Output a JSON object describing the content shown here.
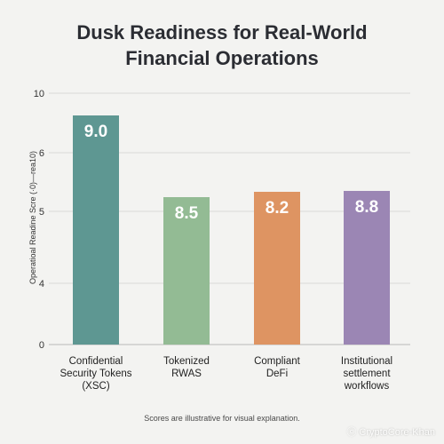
{
  "chart_data": {
    "type": "bar",
    "title_lines": [
      "Dusk Readiness for Real-World",
      "Financial Operations"
    ],
    "ylabel": "Operatioal Readine Scre (·0)—rea10)",
    "ylim": [
      0,
      10
    ],
    "yticks": [
      0,
      4,
      5,
      6,
      10
    ],
    "ytick_labels": [
      "0",
      "4",
      "5",
      "6",
      "10"
    ],
    "categories": [
      [
        "Confidential",
        "Security Tokens",
        "(XSC)"
      ],
      [
        "Tokenized",
        "RWAS"
      ],
      [
        "Compliant",
        "DeFi"
      ],
      [
        "Institutional",
        "settlement",
        "workflows"
      ]
    ],
    "values": [
      9.0,
      8.5,
      8.2,
      8.8
    ],
    "value_labels": [
      "9.0",
      "8.5",
      "8.2",
      "8.8"
    ],
    "colors": [
      "#5e9792",
      "#93bb94",
      "#de9462",
      "#9b86b4"
    ],
    "grid": true,
    "footnote": "Scores are illustrative for visual explanation."
  },
  "watermark": "ⓒ CryptoCore-Khan"
}
